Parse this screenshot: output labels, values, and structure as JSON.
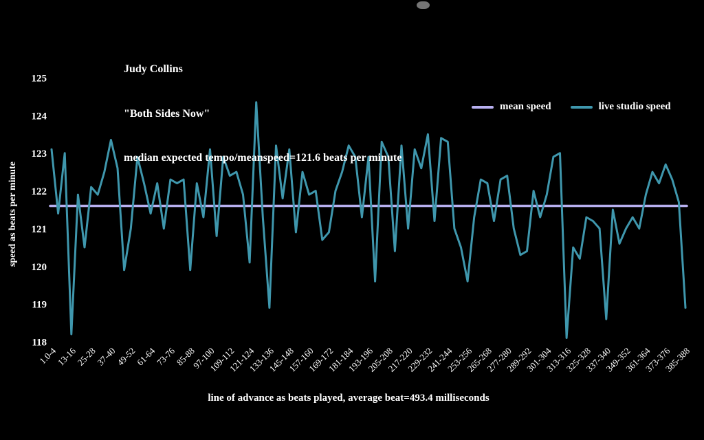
{
  "header": {
    "artist": "Judy Collins",
    "song": "\"Both Sides Now\"",
    "subtitle": "median expected tempo/meanspeed=121.6 beats per minute"
  },
  "colors": {
    "background": "#000000",
    "text": "#ffffff",
    "mean_line": "#b8b0f0",
    "studio_line": "#3f97ad"
  },
  "chart_data": {
    "type": "line",
    "title": "median expected tempo/meanspeed=121.6 beats per minute",
    "ylabel": "speed as beats per minute",
    "xlabel": "line of advance as beats played, average beat=493.4 milliseconds",
    "ylim": [
      118,
      125
    ],
    "yticks": [
      125,
      124,
      123,
      122,
      121,
      120,
      119,
      118
    ],
    "grid": false,
    "legend_position": "top-right",
    "points_per_label": 3,
    "x_tick_labels": [
      "1.0-4",
      "13-16",
      "25-28",
      "37-40",
      "49-52",
      "61-64",
      "73-76",
      "85-88",
      "97-100",
      "109-112",
      "121-124",
      "133-136",
      "145-148",
      "157-160",
      "169-172",
      "181-184",
      "193-196",
      "205-208",
      "217-220",
      "229-232",
      "241-244",
      "253-256",
      "265-268",
      "277-280",
      "289-292",
      "301-304",
      "313-316",
      "325-328",
      "337-340",
      "349-352",
      "361-364",
      "373-376",
      "385-388"
    ],
    "series": [
      {
        "name": "mean speed",
        "color": "#b8b0f0",
        "kind": "constant",
        "value": 121.6
      },
      {
        "name": "live studio speed",
        "color": "#3f97ad",
        "kind": "values",
        "values": [
          123.1,
          121.4,
          123.0,
          118.2,
          121.9,
          120.5,
          122.1,
          121.9,
          122.5,
          123.35,
          122.6,
          119.9,
          121.0,
          122.9,
          122.2,
          121.4,
          122.2,
          121.0,
          122.3,
          122.2,
          122.3,
          119.9,
          122.2,
          121.3,
          123.1,
          120.8,
          122.9,
          122.4,
          122.5,
          121.9,
          120.1,
          124.35,
          121.3,
          118.9,
          123.2,
          121.8,
          123.1,
          120.9,
          122.5,
          121.9,
          122.0,
          120.7,
          120.9,
          122.0,
          122.5,
          123.2,
          122.9,
          121.3,
          122.9,
          119.6,
          123.3,
          122.9,
          120.4,
          123.2,
          121.0,
          123.1,
          122.6,
          123.5,
          121.2,
          123.4,
          123.3,
          121.0,
          120.5,
          119.6,
          121.3,
          122.3,
          122.2,
          121.2,
          122.3,
          122.4,
          121.0,
          120.3,
          120.4,
          122.0,
          121.3,
          121.9,
          122.9,
          123.0,
          118.1,
          120.5,
          120.2,
          121.3,
          121.2,
          121.0,
          118.6,
          121.5,
          120.6,
          121.0,
          121.3,
          121.0,
          121.9,
          122.5,
          122.2,
          122.7,
          122.3,
          121.7,
          118.9
        ]
      }
    ]
  }
}
